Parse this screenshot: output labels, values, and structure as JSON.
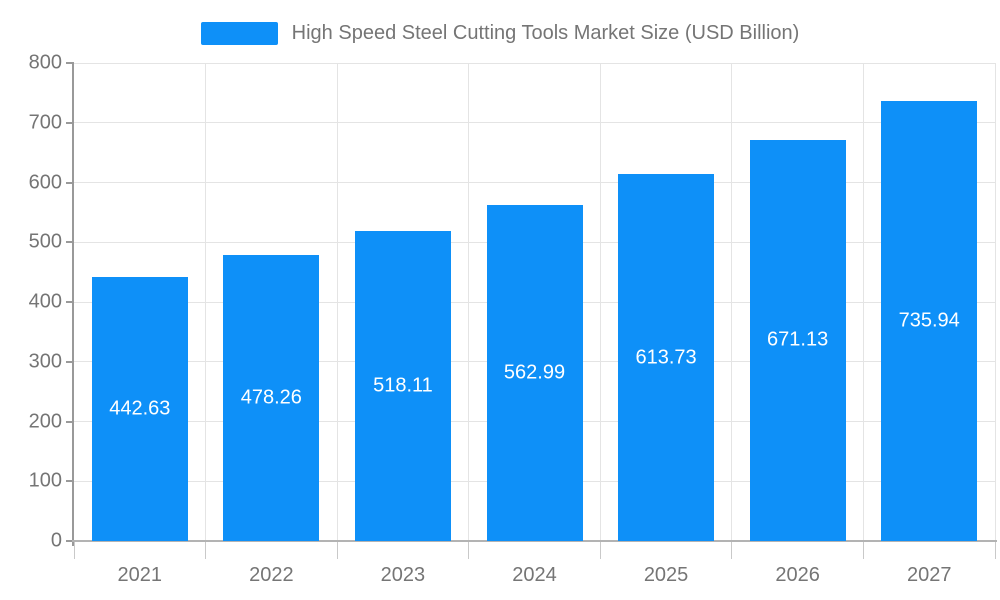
{
  "chart_data": {
    "type": "bar",
    "title": "High Speed Steel Cutting Tools Market Size (USD Billion)",
    "categories": [
      "2021",
      "2022",
      "2023",
      "2024",
      "2025",
      "2026",
      "2027"
    ],
    "values": [
      442.63,
      478.26,
      518.11,
      562.99,
      613.73,
      671.13,
      735.94
    ],
    "value_labels": [
      "442.63",
      "478.26",
      "518.11",
      "562.99",
      "613.73",
      "671.13",
      "735.94"
    ],
    "xlabel": "",
    "ylabel": "",
    "ylim": [
      0,
      800
    ],
    "yticks": [
      0,
      100,
      200,
      300,
      400,
      500,
      600,
      700,
      800
    ],
    "grid": true,
    "legend_position": "top",
    "legend_label": "High Speed Steel Cutting Tools Market Size (USD Billion)",
    "bar_color": "#0e90f8",
    "value_label_color": "#ffffff",
    "axis_text_color": "#757575",
    "gridline_color": "#e4e4e4"
  }
}
